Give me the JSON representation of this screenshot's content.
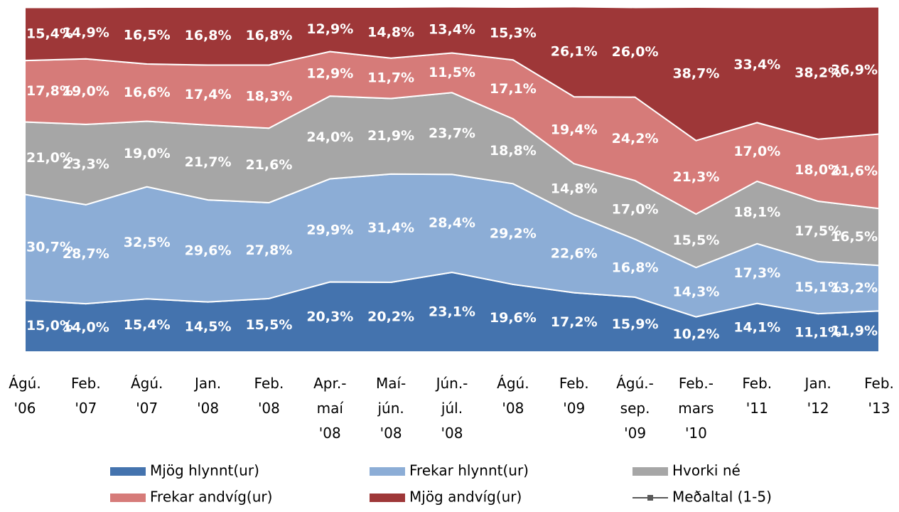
{
  "chart_data": {
    "type": "stacked_area",
    "categories": [
      "Ágú.\n'06",
      "Feb.\n'07",
      "Ágú.\n'07",
      "Jan.\n'08",
      "Feb.\n'08",
      "Apr.-\nmaí\n'08",
      "Maí-\njún.\n'08",
      "Jún.-\njúl.\n'08",
      "Ágú.\n'08",
      "Feb.\n'09",
      "Ágú.-\nsep.\n'09",
      "Feb.-\nmars\n'10",
      "Feb.\n'11",
      "Jan.\n'12",
      "Feb.\n'13"
    ],
    "ylim": [
      0,
      100
    ],
    "legend": "bottom",
    "series": [
      {
        "name": "Mjög hlynnt(ur)",
        "color": "#4473ae",
        "values": [
          15.0,
          14.0,
          15.4,
          14.5,
          15.5,
          20.3,
          20.2,
          23.1,
          19.6,
          17.2,
          15.9,
          10.2,
          14.1,
          11.1,
          11.9
        ],
        "value_labels": [
          "15,0%",
          "14,0%",
          "15,4%",
          "14,5%",
          "15,5%",
          "20,3%",
          "20,2%",
          "23,1%",
          "19,6%",
          "17,2%",
          "15,9%",
          "10,2%",
          "14,1%",
          "11,1%",
          "11,9%"
        ]
      },
      {
        "name": "Frekar hlynnt(ur)",
        "color": "#8cadd6",
        "values": [
          30.7,
          28.7,
          32.5,
          29.6,
          27.8,
          29.9,
          31.4,
          28.4,
          29.2,
          22.6,
          16.8,
          14.3,
          17.3,
          15.1,
          13.2
        ],
        "value_labels": [
          "30,7%",
          "28,7%",
          "32,5%",
          "29,6%",
          "27,8%",
          "29,9%",
          "31,4%",
          "28,4%",
          "29,2%",
          "22,6%",
          "16,8%",
          "14,3%",
          "17,3%",
          "15,1%",
          "13,2%"
        ]
      },
      {
        "name": "Hvorki né",
        "color": "#a6a6a6",
        "values": [
          21.0,
          23.3,
          19.0,
          21.7,
          21.6,
          24.0,
          21.9,
          23.7,
          18.8,
          14.8,
          17.0,
          15.5,
          18.1,
          17.5,
          16.5
        ],
        "value_labels": [
          "21,0%",
          "23,3%",
          "19,0%",
          "21,7%",
          "21,6%",
          "24,0%",
          "21,9%",
          "23,7%",
          "18,8%",
          "14,8%",
          "17,0%",
          "15,5%",
          "18,1%",
          "17,5%",
          "16,5%"
        ]
      },
      {
        "name": "Frekar andvíg(ur)",
        "color": "#d67b79",
        "values": [
          17.8,
          19.0,
          16.6,
          17.4,
          18.3,
          12.9,
          11.7,
          11.5,
          17.1,
          19.4,
          24.2,
          21.3,
          17.0,
          18.0,
          21.6
        ],
        "value_labels": [
          "17,8%",
          "19,0%",
          "16,6%",
          "17,4%",
          "18,3%",
          "12,9%",
          "11,7%",
          "11,5%",
          "17,1%",
          "19,4%",
          "24,2%",
          "21,3%",
          "17,0%",
          "18,0%",
          "21,6%"
        ]
      },
      {
        "name": "Mjög andvíg(ur)",
        "color": "#9e3738",
        "values": [
          15.4,
          14.9,
          16.5,
          16.8,
          16.8,
          12.9,
          14.8,
          13.4,
          15.3,
          26.1,
          26.0,
          38.7,
          33.4,
          38.2,
          36.9
        ],
        "value_labels": [
          "15,4%",
          "14,9%",
          "16,5%",
          "16,8%",
          "16,8%",
          "12,9%",
          "14,8%",
          "13,4%",
          "15,3%",
          "26,1%",
          "26,0%",
          "38,7%",
          "33,4%",
          "38,2%",
          "36,9%"
        ]
      },
      {
        "name": "Meðaltal (1-5)",
        "color": "#595959",
        "type": "line",
        "values": [
          null,
          null,
          null,
          null,
          null,
          null,
          null,
          null,
          null,
          null,
          null,
          null,
          null,
          null,
          null
        ]
      }
    ]
  }
}
